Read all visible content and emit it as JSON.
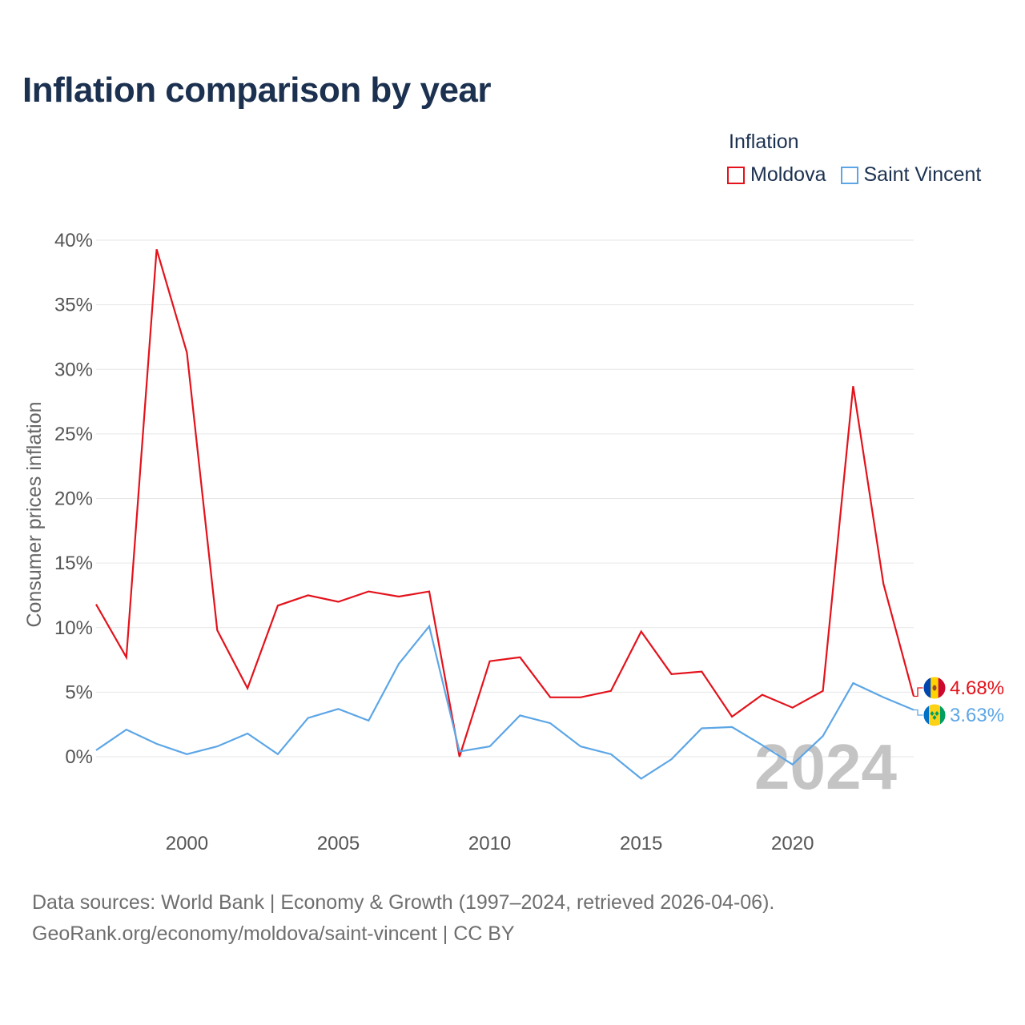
{
  "title": "Inflation comparison by year",
  "legend": {
    "title": "Inflation",
    "items": [
      {
        "name": "Moldova",
        "color": "#e3121b"
      },
      {
        "name": "Saint Vincent",
        "color": "#5da6e6"
      }
    ]
  },
  "source_line1": "Data sources: World Bank | Economy & Growth (1997–2024, retrieved 2026-04-06).",
  "source_line2": "GeoRank.org/economy/moldova/saint-vincent | CC BY",
  "chart_data": {
    "type": "line",
    "title": "Inflation comparison by year",
    "xlabel": "",
    "ylabel": "Consumer prices inflation",
    "xlim": [
      1997,
      2024
    ],
    "ylim": [
      0,
      40
    ],
    "x_ticks": [
      2000,
      2005,
      2010,
      2015,
      2020
    ],
    "y_ticks": [
      0,
      5,
      10,
      15,
      20,
      25,
      30,
      35,
      40
    ],
    "y_tick_labels": [
      "0%",
      "5%",
      "10%",
      "15%",
      "20%",
      "25%",
      "30%",
      "35%",
      "40%"
    ],
    "grid": true,
    "watermark_year": "2024",
    "x": [
      1997,
      1998,
      1999,
      2000,
      2001,
      2002,
      2003,
      2004,
      2005,
      2006,
      2007,
      2008,
      2009,
      2010,
      2011,
      2012,
      2013,
      2014,
      2015,
      2016,
      2017,
      2018,
      2019,
      2020,
      2021,
      2022,
      2023,
      2024
    ],
    "series": [
      {
        "name": "Moldova",
        "color": "#e3121b",
        "end_label": "4.68%",
        "flag": "moldova-flag",
        "values": [
          11.8,
          7.7,
          39.3,
          31.3,
          9.8,
          5.3,
          11.7,
          12.5,
          12.0,
          12.8,
          12.4,
          12.8,
          0.0,
          7.4,
          7.7,
          4.6,
          4.6,
          5.1,
          9.7,
          6.4,
          6.6,
          3.1,
          4.8,
          3.8,
          5.1,
          28.7,
          13.4,
          4.68
        ]
      },
      {
        "name": "Saint Vincent",
        "color": "#5da6e6",
        "end_label": "3.63%",
        "flag": "saint-vincent-flag",
        "values": [
          0.5,
          2.1,
          1.0,
          0.2,
          0.8,
          1.8,
          0.2,
          3.0,
          3.7,
          2.8,
          7.2,
          10.1,
          0.4,
          0.8,
          3.2,
          2.6,
          0.8,
          0.2,
          -1.7,
          -0.2,
          2.2,
          2.3,
          0.9,
          -0.6,
          1.6,
          5.7,
          4.6,
          3.63
        ]
      }
    ]
  }
}
